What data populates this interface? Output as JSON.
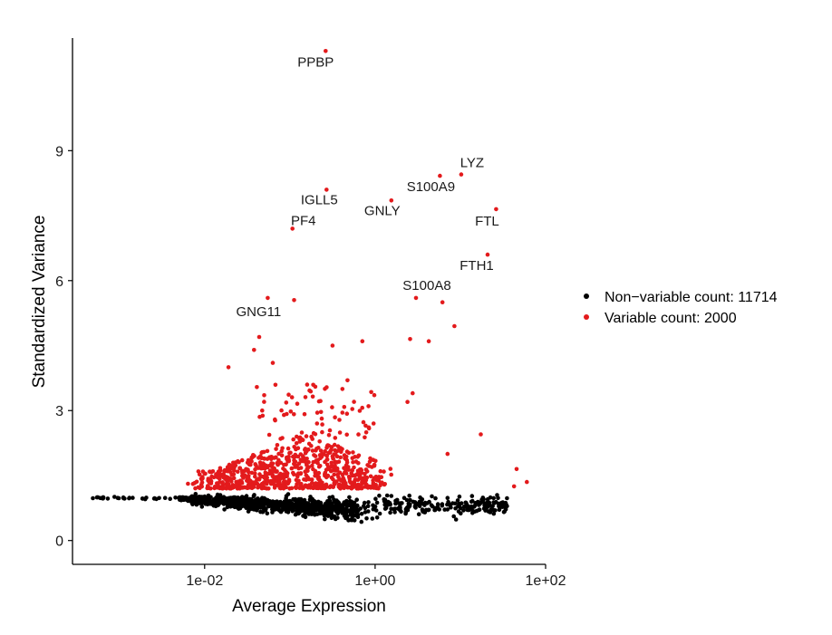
{
  "chart_data": {
    "type": "scatter",
    "xlabel": "Average Expression",
    "ylabel": "Standardized Variance",
    "x_scale": "log10",
    "xlim_log10": [
      -3.55,
      2.0
    ],
    "ylim": [
      -0.55,
      11.6
    ],
    "x_ticks": [
      {
        "value_log10": -2,
        "label": "1e-02"
      },
      {
        "value_log10": 0,
        "label": "1e+00"
      },
      {
        "value_log10": 2,
        "label": "1e+02"
      }
    ],
    "y_ticks": [
      {
        "value": 0,
        "label": "0"
      },
      {
        "value": 3,
        "label": "3"
      },
      {
        "value": 6,
        "label": "6"
      },
      {
        "value": 9,
        "label": "9"
      }
    ],
    "grid": false,
    "legend_position": "right",
    "series": [
      {
        "name": "Non-variable",
        "label": "Non−variable count: 11714",
        "count": 11714,
        "color": "#000000"
      },
      {
        "name": "Variable",
        "label": "Variable count: 2000",
        "count": 2000,
        "color": "#e31a1c"
      }
    ],
    "highlighted_points": [
      {
        "gene": "PPBP",
        "x_log10": -0.58,
        "y": 11.3
      },
      {
        "gene": "LYZ",
        "x_log10": 1.01,
        "y": 8.45
      },
      {
        "gene": "S100A9",
        "x_log10": 0.76,
        "y": 8.42
      },
      {
        "gene": "IGLL5",
        "x_log10": -0.57,
        "y": 8.1
      },
      {
        "gene": "GNLY",
        "x_log10": 0.19,
        "y": 7.85
      },
      {
        "gene": "FTL",
        "x_log10": 1.42,
        "y": 7.65
      },
      {
        "gene": "PF4",
        "x_log10": -0.97,
        "y": 7.2
      },
      {
        "gene": "FTH1",
        "x_log10": 1.32,
        "y": 6.6
      },
      {
        "gene": "S100A8",
        "x_log10": 0.48,
        "y": 5.6
      },
      {
        "gene": "GNG11",
        "x_log10": -1.26,
        "y": 5.6
      }
    ],
    "extra_variable_points": [
      {
        "x_log10": -0.95,
        "y": 5.55
      },
      {
        "x_log10": 0.79,
        "y": 5.5
      },
      {
        "x_log10": 0.93,
        "y": 4.95
      },
      {
        "x_log10": 0.41,
        "y": 4.65
      },
      {
        "x_log10": 0.63,
        "y": 4.6
      },
      {
        "x_log10": -1.36,
        "y": 4.7
      },
      {
        "x_log10": -0.5,
        "y": 4.5
      },
      {
        "x_log10": -0.15,
        "y": 4.6
      },
      {
        "x_log10": -1.42,
        "y": 4.4
      },
      {
        "x_log10": 0.44,
        "y": 3.4
      },
      {
        "x_log10": 0.38,
        "y": 3.2
      },
      {
        "x_log10": 1.24,
        "y": 2.45
      },
      {
        "x_log10": 1.66,
        "y": 1.65
      },
      {
        "x_log10": 1.78,
        "y": 1.35
      },
      {
        "x_log10": 1.63,
        "y": 1.25
      },
      {
        "x_log10": 0.85,
        "y": 2.0
      },
      {
        "x_log10": -1.72,
        "y": 4.0
      },
      {
        "x_log10": -1.2,
        "y": 4.1
      }
    ]
  }
}
